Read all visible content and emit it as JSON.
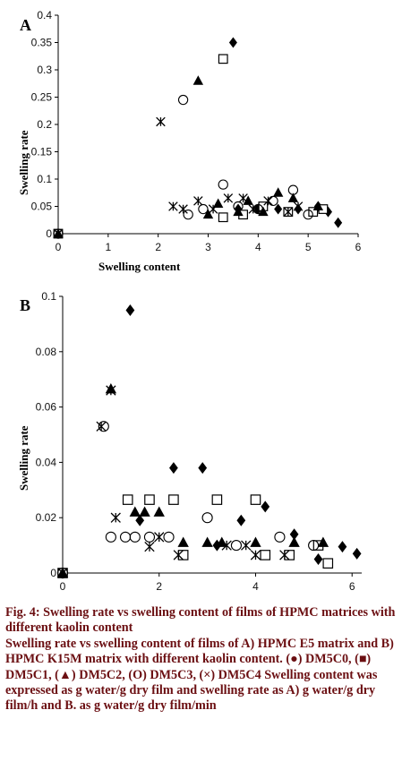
{
  "chart_data": [
    {
      "panel": "A",
      "type": "scatter",
      "xlabel": "Swelling content",
      "ylabel": "Swelling rate",
      "xlim": [
        0,
        6
      ],
      "ylim": [
        0,
        0.4
      ],
      "xticks": [
        0,
        1,
        2,
        3,
        4,
        5,
        6
      ],
      "yticks": [
        0,
        0.05,
        0.1,
        0.15,
        0.2,
        0.25,
        0.3,
        0.35,
        0.4
      ],
      "ytick_labels": [
        "0",
        "0.05",
        "0.1",
        "0.15",
        "0.2",
        "0.25",
        "0.3",
        "0.35",
        "0.4"
      ],
      "grid": false,
      "series": [
        {
          "marker": "diamond",
          "points": [
            [
              0,
              0
            ],
            [
              3.5,
              0.35
            ],
            [
              3.6,
              0.045
            ],
            [
              4.0,
              0.045
            ],
            [
              4.4,
              0.045
            ],
            [
              4.8,
              0.045
            ],
            [
              5.2,
              0.05
            ],
            [
              5.4,
              0.04
            ],
            [
              5.6,
              0.02
            ]
          ]
        },
        {
          "marker": "square",
          "points": [
            [
              0,
              0
            ],
            [
              3.3,
              0.32
            ],
            [
              3.3,
              0.03
            ],
            [
              3.7,
              0.035
            ],
            [
              4.1,
              0.05
            ],
            [
              4.6,
              0.04
            ],
            [
              5.1,
              0.04
            ],
            [
              5.3,
              0.045
            ]
          ]
        },
        {
          "marker": "triangle",
          "points": [
            [
              0,
              0
            ],
            [
              2.8,
              0.28
            ],
            [
              3.0,
              0.035
            ],
            [
              3.2,
              0.055
            ],
            [
              3.6,
              0.04
            ],
            [
              3.8,
              0.06
            ],
            [
              4.1,
              0.04
            ],
            [
              4.4,
              0.075
            ],
            [
              4.7,
              0.065
            ],
            [
              5.2,
              0.05
            ]
          ]
        },
        {
          "marker": "circle",
          "points": [
            [
              0,
              0
            ],
            [
              2.5,
              0.245
            ],
            [
              2.6,
              0.035
            ],
            [
              2.9,
              0.045
            ],
            [
              3.3,
              0.09
            ],
            [
              3.6,
              0.05
            ],
            [
              4.0,
              0.045
            ],
            [
              4.3,
              0.06
            ],
            [
              4.7,
              0.08
            ],
            [
              5.0,
              0.035
            ]
          ]
        },
        {
          "marker": "asterisk",
          "points": [
            [
              0,
              0
            ],
            [
              2.05,
              0.205
            ],
            [
              2.3,
              0.05
            ],
            [
              2.5,
              0.045
            ],
            [
              2.8,
              0.06
            ],
            [
              3.1,
              0.045
            ],
            [
              3.4,
              0.065
            ],
            [
              3.7,
              0.065
            ],
            [
              3.9,
              0.045
            ],
            [
              4.2,
              0.06
            ],
            [
              4.6,
              0.04
            ],
            [
              4.8,
              0.05
            ]
          ]
        }
      ]
    },
    {
      "panel": "B",
      "type": "scatter",
      "xlabel": "",
      "ylabel": "Swelling rate",
      "xlim": [
        0,
        6.2
      ],
      "ylim": [
        0,
        0.1
      ],
      "xticks": [
        0,
        2,
        4,
        6
      ],
      "yticks": [
        0,
        0.02,
        0.04,
        0.06,
        0.08,
        0.1
      ],
      "ytick_labels": [
        "0",
        "0.02",
        "0.04",
        "0.06",
        "0.08",
        "0.1"
      ],
      "grid": false,
      "series": [
        {
          "marker": "diamond",
          "points": [
            [
              0,
              0
            ],
            [
              1.4,
              0.095
            ],
            [
              2.3,
              0.038
            ],
            [
              2.9,
              0.038
            ],
            [
              1.6,
              0.019
            ],
            [
              3.2,
              0.01
            ],
            [
              3.7,
              0.019
            ],
            [
              4.2,
              0.024
            ],
            [
              4.8,
              0.014
            ],
            [
              5.3,
              0.005
            ],
            [
              5.8,
              0.0095
            ],
            [
              6.1,
              0.007
            ]
          ]
        },
        {
          "marker": "square",
          "points": [
            [
              0,
              0
            ],
            [
              1.35,
              0.0265
            ],
            [
              1.8,
              0.0265
            ],
            [
              2.3,
              0.0265
            ],
            [
              3.2,
              0.0265
            ],
            [
              4.0,
              0.0265
            ],
            [
              2.5,
              0.0065
            ],
            [
              4.2,
              0.0065
            ],
            [
              4.7,
              0.0065
            ],
            [
              5.3,
              0.01
            ],
            [
              5.5,
              0.0035
            ]
          ]
        },
        {
          "marker": "triangle",
          "points": [
            [
              0,
              0
            ],
            [
              1.0,
              0.0665
            ],
            [
              1.5,
              0.022
            ],
            [
              1.7,
              0.022
            ],
            [
              2.0,
              0.022
            ],
            [
              2.5,
              0.011
            ],
            [
              3.0,
              0.011
            ],
            [
              3.3,
              0.011
            ],
            [
              4.0,
              0.011
            ],
            [
              4.8,
              0.011
            ],
            [
              5.4,
              0.011
            ]
          ]
        },
        {
          "marker": "circle",
          "points": [
            [
              0,
              0
            ],
            [
              0.85,
              0.053
            ],
            [
              1.0,
              0.013
            ],
            [
              1.3,
              0.013
            ],
            [
              1.5,
              0.013
            ],
            [
              1.8,
              0.013
            ],
            [
              2.2,
              0.013
            ],
            [
              3.0,
              0.02
            ],
            [
              3.6,
              0.01
            ],
            [
              4.5,
              0.013
            ],
            [
              5.2,
              0.01
            ]
          ]
        },
        {
          "marker": "asterisk",
          "points": [
            [
              0,
              0
            ],
            [
              0.8,
              0.053
            ],
            [
              1.0,
              0.066
            ],
            [
              1.1,
              0.02
            ],
            [
              1.8,
              0.0095
            ],
            [
              2.0,
              0.013
            ],
            [
              2.4,
              0.0065
            ],
            [
              3.4,
              0.01
            ],
            [
              3.8,
              0.01
            ],
            [
              4.0,
              0.0065
            ],
            [
              4.6,
              0.0065
            ]
          ]
        }
      ]
    }
  ],
  "caption": {
    "title": "Fig. 4: Swelling rate vs swelling content of films of HPMC matrices with different kaolin content",
    "body": "Swelling rate vs swelling content of films of A) HPMC E5 matrix and B) HPMC K15M matrix with different kaolin content. (●) DM5C0, (■) DM5C1, (▲) DM5C2, (O) DM5C3, (×) DM5C4 Swelling content was expressed as g water/g dry film and swelling rate as A) g water/g dry film/h and B. as g water/g dry film/min"
  }
}
